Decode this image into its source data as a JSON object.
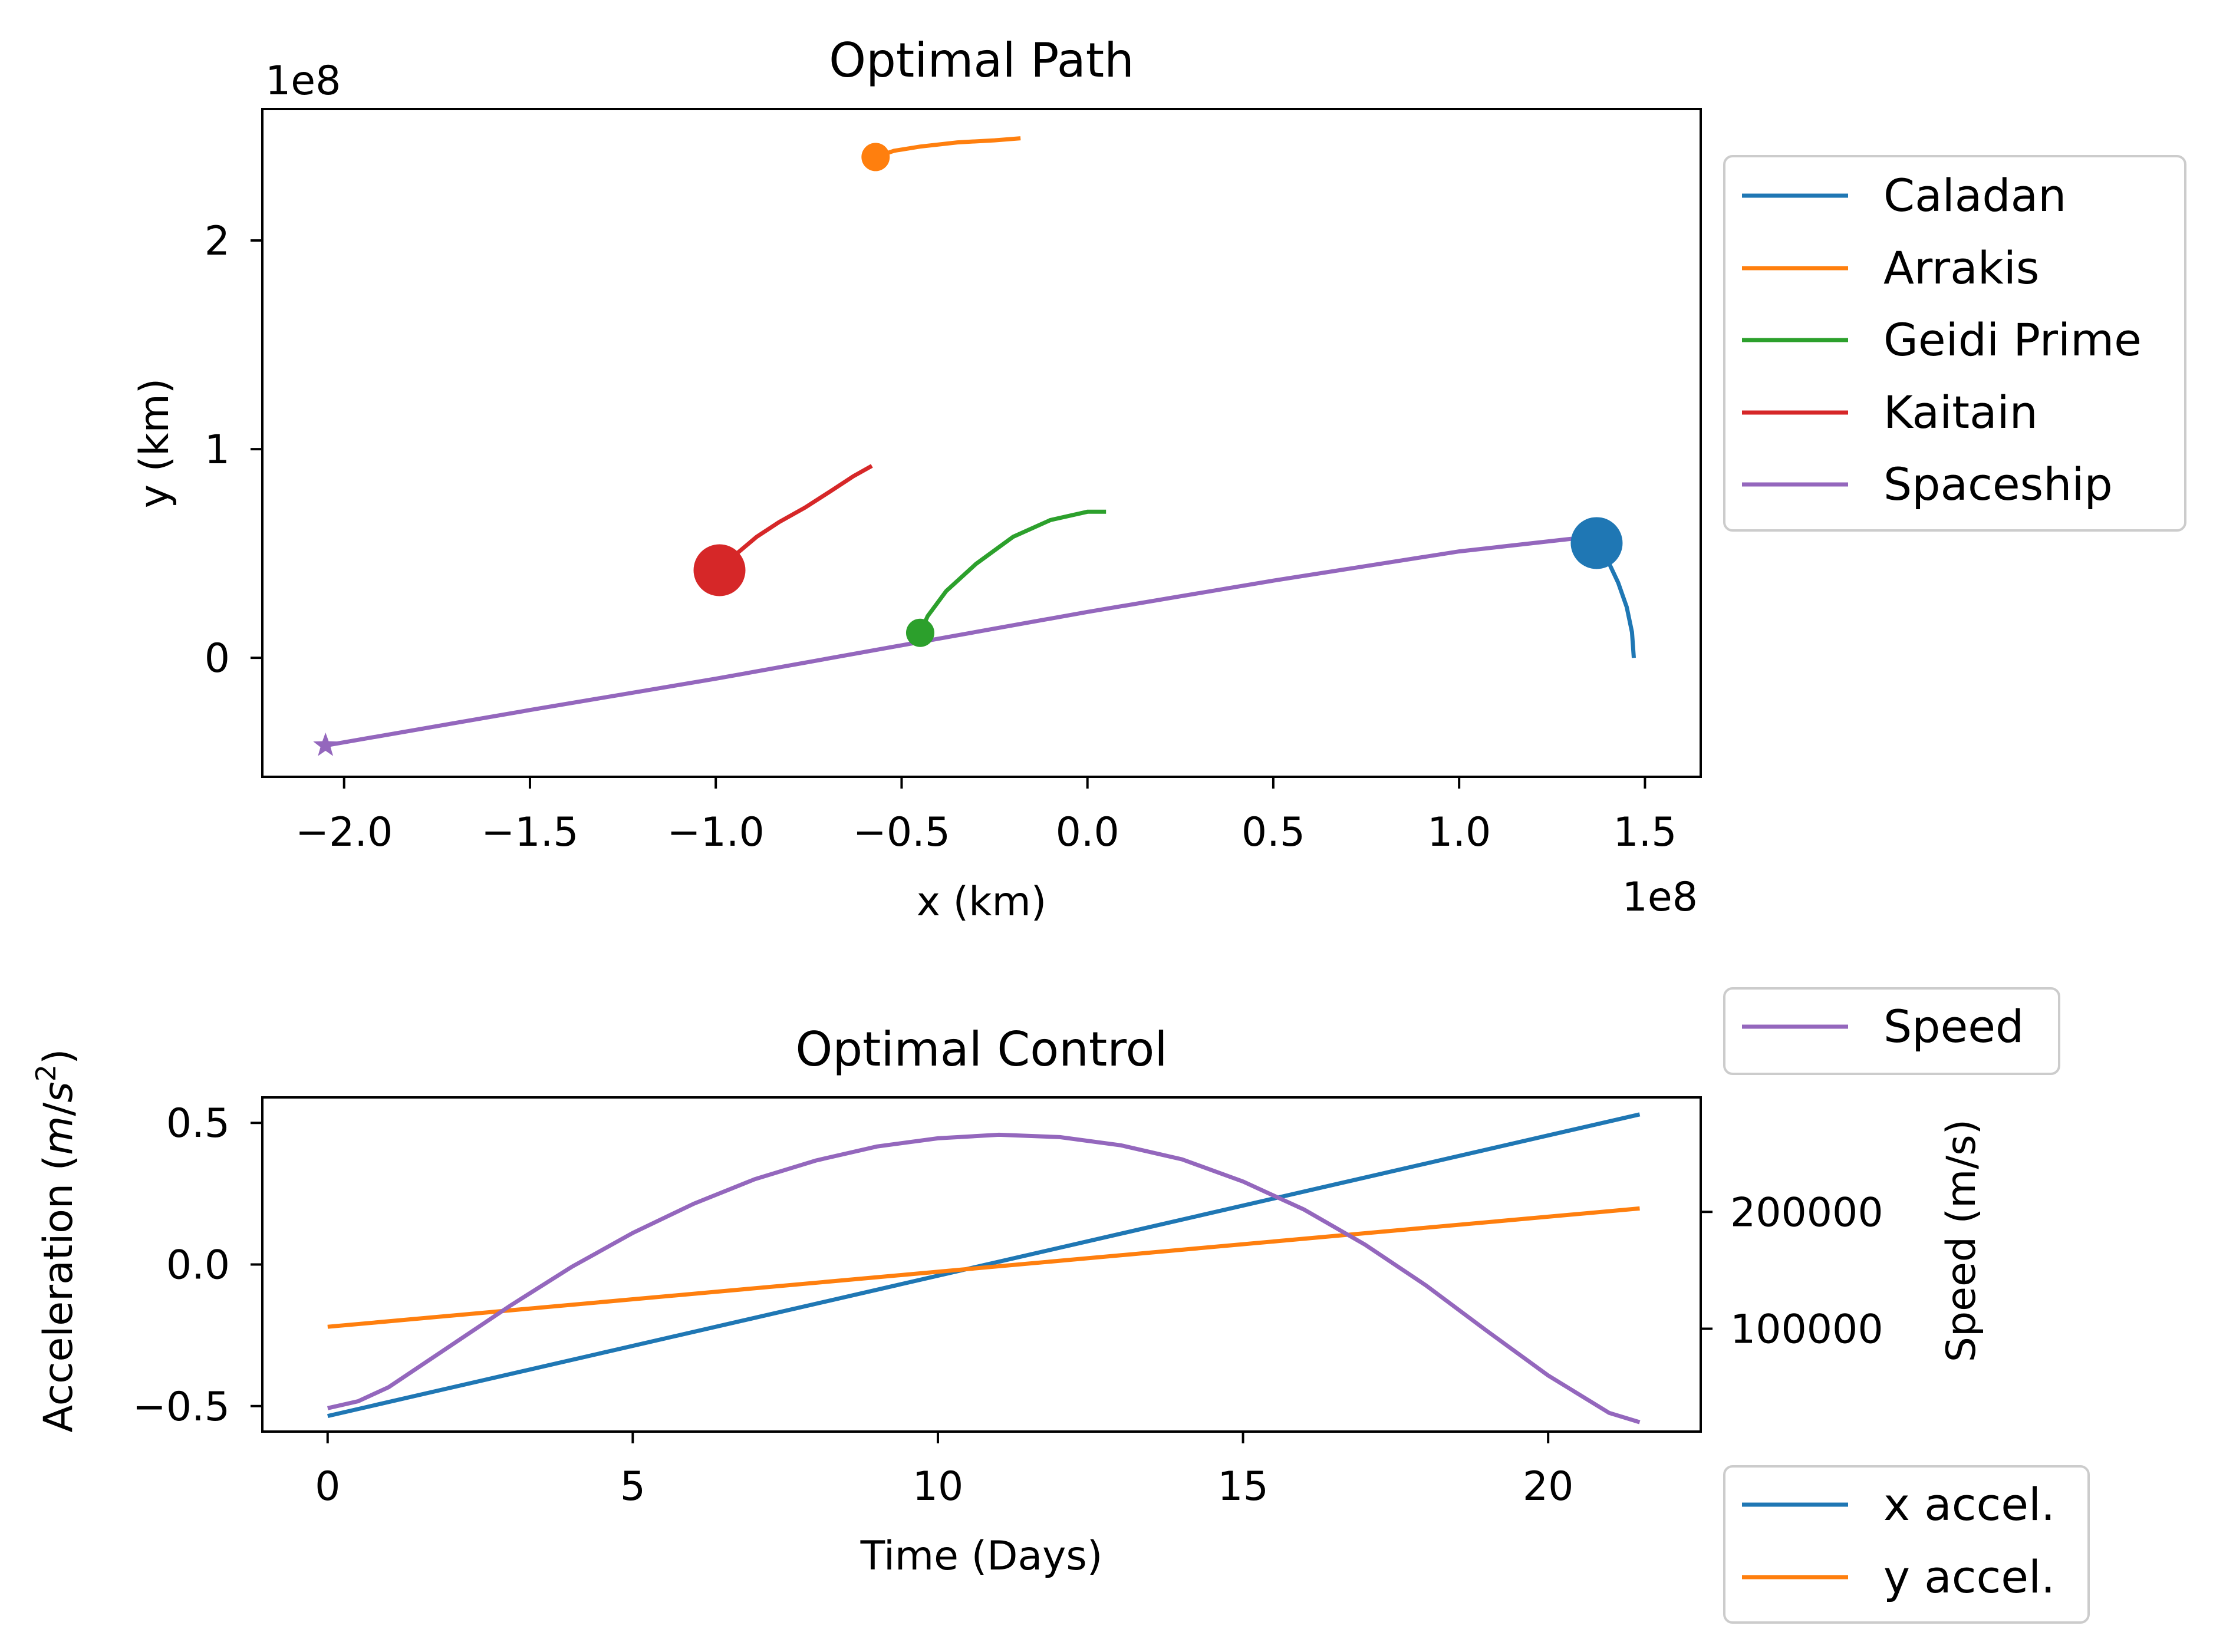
{
  "colors": {
    "blue": "#1f77b4",
    "orange": "#ff7f0e",
    "green": "#2ca02c",
    "red": "#d62728",
    "purple": "#9467bd"
  },
  "chart_data": [
    {
      "type": "line",
      "title": "Optimal Path",
      "xlabel": "x (km)",
      "ylabel": "y (km)",
      "x_offset_label": "1e8",
      "y_offset_label": "1e8",
      "xlim": [
        -2.22,
        1.65
      ],
      "ylim": [
        -0.57,
        2.63
      ],
      "xticks": [
        -2.0,
        -1.5,
        -1.0,
        -0.5,
        0.0,
        0.5,
        1.0,
        1.5
      ],
      "xtick_labels": [
        "−2.0",
        "−1.5",
        "−1.0",
        "−0.5",
        "0.0",
        "0.5",
        "1.0",
        "1.5"
      ],
      "yticks": [
        0,
        1,
        2
      ],
      "ytick_labels": [
        "0",
        "1",
        "2"
      ],
      "legend_position": "outside-right",
      "series": [
        {
          "name": "Caladan",
          "color": "blue",
          "x": [
            1.47,
            1.465,
            1.451,
            1.428,
            1.399,
            1.37
          ],
          "y": [
            0.0,
            0.123,
            0.243,
            0.36,
            0.47,
            0.55
          ],
          "marker": {
            "x": 1.37,
            "y": 0.55,
            "shape": "circle",
            "size": "large"
          }
        },
        {
          "name": "Arrakis",
          "color": "orange",
          "x": [
            -0.57,
            -0.52,
            -0.45,
            -0.35,
            -0.25,
            -0.18
          ],
          "y": [
            2.4,
            2.43,
            2.45,
            2.47,
            2.48,
            2.49
          ],
          "marker": {
            "x": -0.57,
            "y": 2.4,
            "shape": "circle",
            "size": "small"
          }
        },
        {
          "name": "Geidi Prime",
          "color": "green",
          "x": [
            -0.45,
            -0.43,
            -0.38,
            -0.3,
            -0.2,
            -0.1,
            0.0,
            0.05
          ],
          "y": [
            0.12,
            0.2,
            0.32,
            0.45,
            0.58,
            0.66,
            0.7,
            0.7
          ],
          "marker": {
            "x": -0.45,
            "y": 0.12,
            "shape": "circle",
            "size": "small"
          }
        },
        {
          "name": "Kaitain",
          "color": "red",
          "x": [
            -0.99,
            -0.95,
            -0.89,
            -0.83,
            -0.76,
            -0.69,
            -0.63,
            -0.58
          ],
          "y": [
            0.42,
            0.49,
            0.58,
            0.65,
            0.72,
            0.8,
            0.87,
            0.92
          ],
          "marker": {
            "x": -0.99,
            "y": 0.42,
            "shape": "circle",
            "size": "medium"
          }
        },
        {
          "name": "Spaceship",
          "color": "purple",
          "x": [
            -2.05,
            -1.5,
            -1.0,
            -0.5,
            0.0,
            0.5,
            1.0,
            1.25,
            1.35,
            1.38,
            1.37
          ],
          "y": [
            -0.42,
            -0.25,
            -0.1,
            0.06,
            0.22,
            0.37,
            0.51,
            0.56,
            0.58,
            0.57,
            0.55
          ],
          "marker": {
            "x": -2.05,
            "y": -0.42,
            "shape": "star",
            "size": "small"
          }
        }
      ]
    },
    {
      "type": "line",
      "title": "Optimal Control",
      "xlabel": "Time (Days)",
      "ylabel": "Acceleration (m/s²)",
      "ylabel_main": "Acceleration (",
      "ylabel_unit_m": "m",
      "ylabel_unit_sep": "/",
      "ylabel_unit_s": "s",
      "ylabel_unit_exp": "2",
      "ylabel_close": ")",
      "y2label": "Speed (m/s)",
      "xlim": [
        -1.07,
        22.5
      ],
      "ylim": [
        -0.59,
        0.59
      ],
      "y2lim": [
        12000,
        298000
      ],
      "xticks": [
        0,
        5,
        10,
        15,
        20
      ],
      "xtick_labels": [
        "0",
        "5",
        "10",
        "15",
        "20"
      ],
      "yticks": [
        -0.5,
        0.0,
        0.5
      ],
      "ytick_labels": [
        "−0.5",
        "0.0",
        "0.5"
      ],
      "y2ticks": [
        100000,
        200000
      ],
      "y2tick_labels": [
        "100000",
        "200000"
      ],
      "legend_speed_position": "upper-right-outside",
      "legend_accel_position": "lower-right-outside",
      "series": [
        {
          "name": "x accel.",
          "color": "blue",
          "axis": "left",
          "x": [
            0,
            21.5
          ],
          "y": [
            -0.535,
            0.53
          ]
        },
        {
          "name": "y accel.",
          "color": "orange",
          "axis": "left",
          "x": [
            0,
            21.5
          ],
          "y": [
            -0.22,
            0.198
          ]
        },
        {
          "name": "Speed",
          "color": "purple",
          "axis": "right",
          "x": [
            0,
            0.5,
            1,
            2,
            3,
            4,
            5,
            6,
            7,
            8,
            9,
            10,
            11,
            12,
            13,
            14,
            15,
            16,
            17,
            18,
            19,
            20,
            21,
            21.5
          ],
          "y": [
            32000,
            38000,
            50000,
            85000,
            120000,
            153000,
            182000,
            207000,
            228000,
            244000,
            256000,
            263000,
            266000,
            264000,
            257000,
            245000,
            226000,
            202000,
            172000,
            137000,
            98000,
            60000,
            28000,
            20000
          ]
        }
      ]
    }
  ]
}
